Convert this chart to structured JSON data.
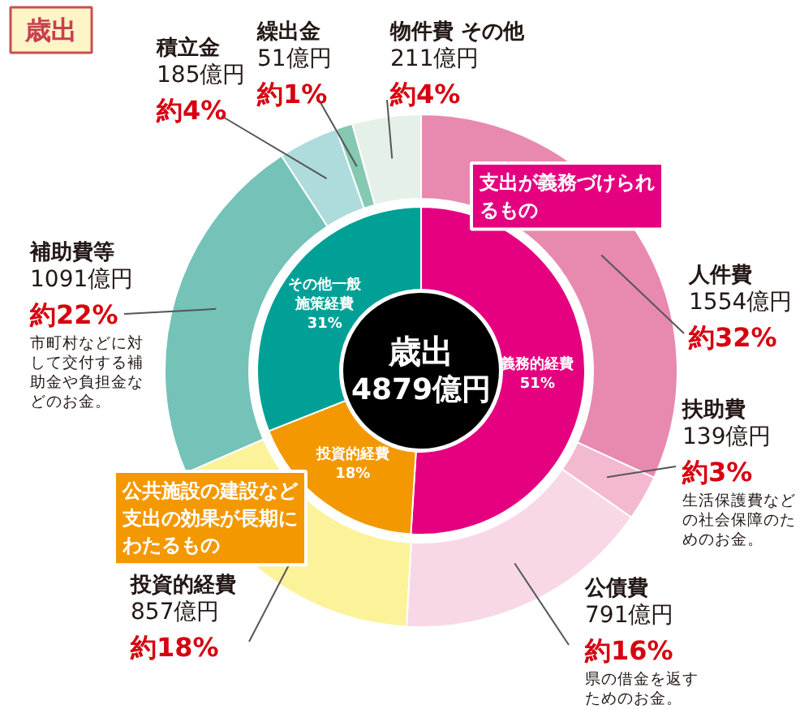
{
  "chart_data": [
    {
      "type": "donut",
      "title": "歳出",
      "categories": [
        "人件費",
        "扶助費",
        "公債費",
        "投資的経費",
        "補助費等",
        "積立金",
        "繰出金",
        "物件費 その他"
      ],
      "values": [
        1554,
        139,
        791,
        857,
        1091,
        185,
        51,
        211
      ],
      "colors": [
        "#e889b0",
        "#f2b9d1",
        "#f8d8e6",
        "#fbf29a",
        "#74c2b8",
        "#aedbdb",
        "#86c9b3",
        "#e5f1e8"
      ],
      "value_labels": [
        "1554億円",
        "139億円",
        "791億円",
        "857億円",
        "1091億円",
        "185億円",
        "51億円",
        "211億円"
      ],
      "annotations": [
        {
          "text": "約32%",
          "x": "人件費"
        },
        {
          "text": "約3%",
          "x": "扶助費"
        },
        {
          "text": "生活保護費などの社会保障のためのお金。",
          "x": "扶助費"
        },
        {
          "text": "約16%",
          "x": "公債費"
        },
        {
          "text": "県の借金を返すためのお金。",
          "x": "公債費"
        },
        {
          "text": "約18%",
          "x": "投資的経費"
        },
        {
          "text": "約22%",
          "x": "補助費等"
        },
        {
          "text": "市町村などに対して交付する補助金や負担金などのお金。",
          "x": "補助費等"
        },
        {
          "text": "約4%",
          "x": "積立金"
        },
        {
          "text": "約1%",
          "x": "繰出金"
        },
        {
          "text": "約4%",
          "x": "物件費 その他"
        }
      ]
    },
    {
      "type": "donut",
      "categories": [
        "義務的経費",
        "投資的経費",
        "その他一般施策経費"
      ],
      "values": [
        51,
        18,
        31
      ],
      "colors": [
        "#e4007f",
        "#f39800",
        "#00a096"
      ],
      "value_labels": [
        "51%",
        "18%",
        "31%"
      ],
      "annotations": [
        "歳出",
        "4879億円",
        {
          "text": "支出が義務づけられるもの",
          "x": "義務的経費"
        },
        {
          "text": "公共施設の建設など支出の効果が長期にわたるもの",
          "x": "投資的経費"
        }
      ]
    }
  ]
}
